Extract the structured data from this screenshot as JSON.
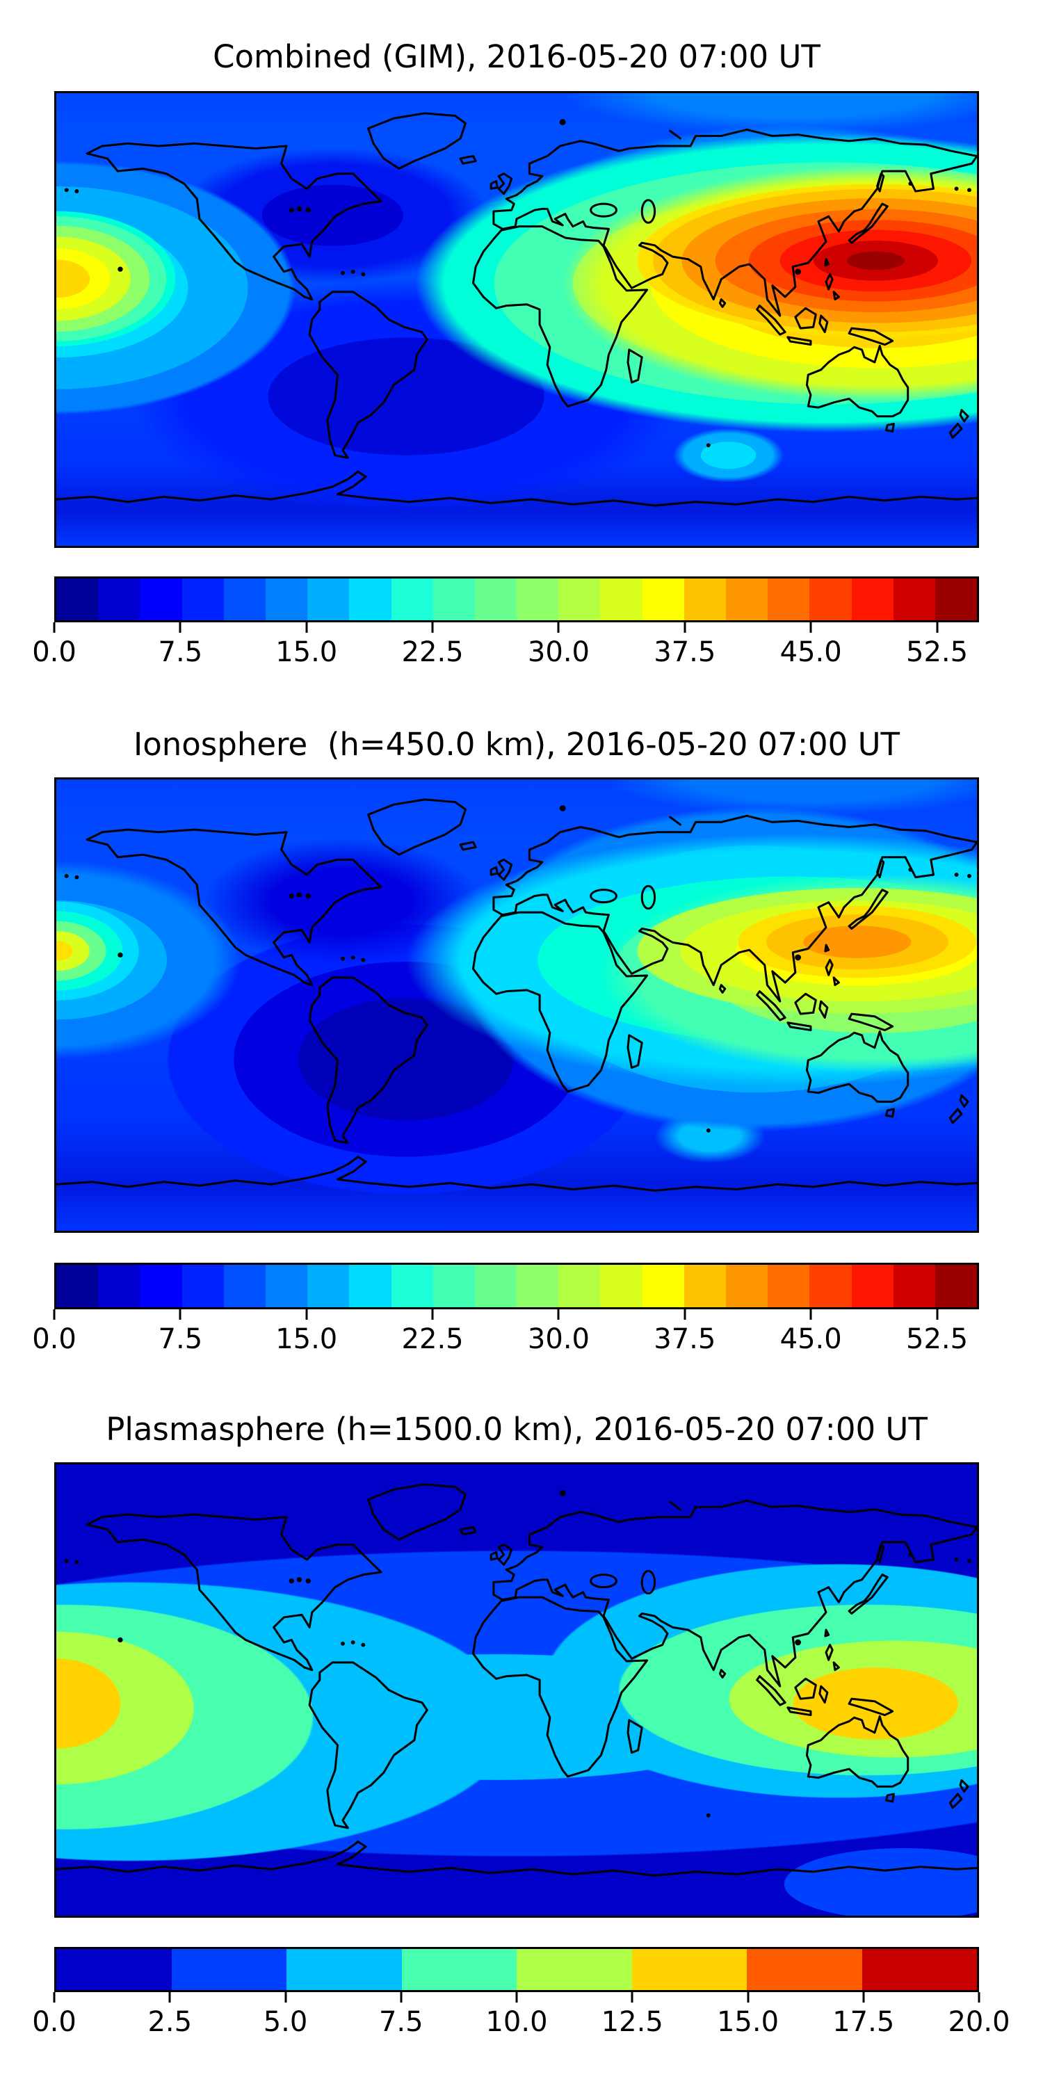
{
  "figure": {
    "background": "#ffffff"
  },
  "panels": [
    {
      "id": "combined",
      "title": "Combined (GIM), 2016-05-20 07:00 UT",
      "colorbar": {
        "min": 0,
        "max": 55,
        "ticks": [
          "0.0",
          "7.5",
          "15.0",
          "22.5",
          "30.0",
          "37.5",
          "45.0",
          "52.5"
        ],
        "tick_values": [
          0,
          7.5,
          15,
          22.5,
          30,
          37.5,
          45,
          52.5
        ],
        "colors": [
          "#00009a",
          "#0000ce",
          "#0000ff",
          "#0023ff",
          "#0051ff",
          "#0080ff",
          "#00aeff",
          "#00dcff",
          "#1effd9",
          "#43ffb4",
          "#69ff8e",
          "#8eff69",
          "#b4ff43",
          "#d9ff1e",
          "#feff00",
          "#ffc200",
          "#ff9700",
          "#ff6c00",
          "#ff4100",
          "#ff1600",
          "#cf0000",
          "#9a0000"
        ]
      }
    },
    {
      "id": "ionosphere",
      "title": "Ionosphere  (h=450.0 km), 2016-05-20 07:00 UT",
      "colorbar": {
        "min": 0,
        "max": 55,
        "ticks": [
          "0.0",
          "7.5",
          "15.0",
          "22.5",
          "30.0",
          "37.5",
          "45.0",
          "52.5"
        ],
        "tick_values": [
          0,
          7.5,
          15,
          22.5,
          30,
          37.5,
          45,
          52.5
        ],
        "colors": [
          "#00009a",
          "#0000ce",
          "#0000ff",
          "#0023ff",
          "#0051ff",
          "#0080ff",
          "#00aeff",
          "#00dcff",
          "#1effd9",
          "#43ffb4",
          "#69ff8e",
          "#8eff69",
          "#b4ff43",
          "#d9ff1e",
          "#feff00",
          "#ffc200",
          "#ff9700",
          "#ff6c00",
          "#ff4100",
          "#ff1600",
          "#cf0000",
          "#9a0000"
        ]
      }
    },
    {
      "id": "plasmasphere",
      "title": "Plasmasphere (h=1500.0 km), 2016-05-20 07:00 UT",
      "colorbar": {
        "min": 0,
        "max": 20,
        "ticks": [
          "0.0",
          "2.5",
          "5.0",
          "7.5",
          "10.0",
          "12.5",
          "15.0",
          "17.5",
          "20.0"
        ],
        "tick_values": [
          0,
          2.5,
          5,
          7.5,
          10,
          12.5,
          15,
          17.5,
          20
        ],
        "colors": [
          "#0000c8",
          "#0040ff",
          "#00bfff",
          "#48ffaf",
          "#afff48",
          "#ffd200",
          "#ff5c00",
          "#c80000"
        ]
      }
    }
  ],
  "chart_data": [
    {
      "type": "heatmap",
      "title": "Combined (GIM), 2016-05-20 07:00 UT",
      "projection": "equirectangular",
      "lon_range": [
        -180,
        180
      ],
      "lat_range": [
        -90,
        90
      ],
      "value_range": [
        0,
        55
      ],
      "contour_step": 2.5,
      "colormap": "jet",
      "colorbar_ticks": [
        0.0,
        7.5,
        15.0,
        22.5,
        30.0,
        37.5,
        45.0,
        52.5
      ],
      "features": [
        {
          "name": "east-asia-peak",
          "lon": 130,
          "lat": 22,
          "value": 53
        },
        {
          "name": "pacific-wrap-peak",
          "lon": -178,
          "lat": 16,
          "value": 40
        },
        {
          "name": "equatorial-band",
          "lat_center": 10,
          "value": 25
        },
        {
          "name": "north-america-minimum",
          "lon": -75,
          "lat": 40,
          "value": 8
        },
        {
          "name": "south-atlantic-minimum",
          "lon": -45,
          "lat": -30,
          "value": 6
        },
        {
          "name": "antarctic-band",
          "lat_center": -75,
          "value": 8
        }
      ]
    },
    {
      "type": "heatmap",
      "title": "Ionosphere  (h=450.0 km), 2016-05-20 07:00 UT",
      "projection": "equirectangular",
      "lon_range": [
        -180,
        180
      ],
      "lat_range": [
        -90,
        90
      ],
      "value_range": [
        0,
        55
      ],
      "contour_step": 2.5,
      "colormap": "jet",
      "colorbar_ticks": [
        0.0,
        7.5,
        15.0,
        22.5,
        30.0,
        37.5,
        45.0,
        52.5
      ],
      "features": [
        {
          "name": "east-asia-peak",
          "lon": 132,
          "lat": 25,
          "value": 43
        },
        {
          "name": "pacific-wrap-peak",
          "lon": -179,
          "lat": 20,
          "value": 33
        },
        {
          "name": "indian-ocean-band",
          "lat_center": 10,
          "value": 20
        },
        {
          "name": "americas-atlantic-minimum",
          "lon": -50,
          "lat": -20,
          "value": 3
        },
        {
          "name": "antarctic-band",
          "lat_center": -75,
          "value": 6
        }
      ]
    },
    {
      "type": "heatmap",
      "title": "Plasmasphere (h=1500.0 km), 2016-05-20 07:00 UT",
      "projection": "equirectangular",
      "lon_range": [
        -180,
        180
      ],
      "lat_range": [
        -90,
        90
      ],
      "value_range": [
        0,
        20
      ],
      "contour_step": 2.5,
      "colormap": "jet",
      "colorbar_ticks": [
        0.0,
        2.5,
        5.0,
        7.5,
        10.0,
        12.5,
        15.0,
        17.5,
        20.0
      ],
      "features": [
        {
          "name": "pacific-wrap-peak",
          "lon": -176,
          "lat": -5,
          "value": 16
        },
        {
          "name": "southeast-asia-peak",
          "lon": 140,
          "lat": -4,
          "value": 16
        },
        {
          "name": "equatorial-band",
          "lat_center": 0,
          "value": 7
        },
        {
          "name": "polar-minimum-north",
          "lat_center": 70,
          "value": 1
        },
        {
          "name": "polar-minimum-south",
          "lat_center": -70,
          "value": 1
        }
      ]
    }
  ]
}
